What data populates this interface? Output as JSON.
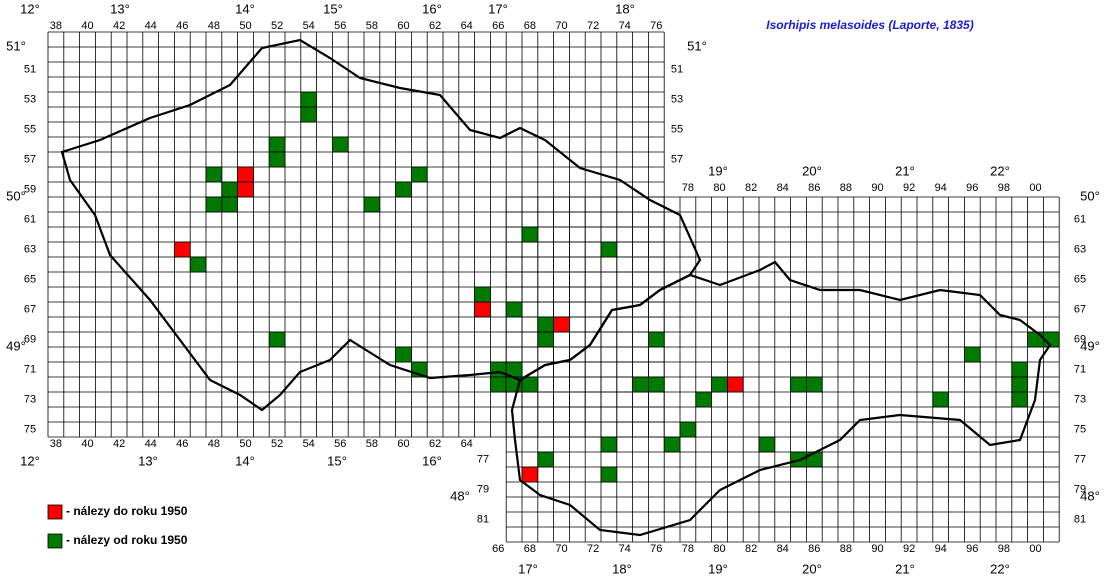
{
  "title": "Isorhipis melasoides (Laporte, 1835)",
  "grid": {
    "top_columns": [
      "38",
      "40",
      "42",
      "44",
      "46",
      "48",
      "50",
      "52",
      "54",
      "56",
      "58",
      "60",
      "62",
      "64",
      "66",
      "68",
      "70",
      "72",
      "74",
      "76"
    ],
    "bottom_columns_cz": [
      "38",
      "40",
      "42",
      "44",
      "46",
      "48",
      "50",
      "52",
      "54",
      "56",
      "58",
      "60",
      "62",
      "64"
    ],
    "top_columns_sk": [
      "78",
      "80",
      "82",
      "84",
      "86",
      "88",
      "90",
      "92",
      "94",
      "96",
      "98",
      "00"
    ],
    "bottom_columns_sk": [
      "66",
      "68",
      "70",
      "72",
      "74",
      "76",
      "78",
      "80",
      "82",
      "84",
      "86",
      "88",
      "90",
      "92",
      "94",
      "96",
      "98",
      "00"
    ],
    "left_rows_cz": [
      "51",
      "53",
      "55",
      "57",
      "59",
      "61",
      "63",
      "65",
      "67",
      "69",
      "71",
      "73",
      "75"
    ],
    "right_rows_cz": [
      "51",
      "53",
      "55",
      "57"
    ],
    "right_rows_sk": [
      "61",
      "63",
      "65",
      "67",
      "69",
      "71",
      "73",
      "75",
      "77",
      "79",
      "81"
    ],
    "left_rows_sk": [
      "77",
      "79",
      "81"
    ]
  },
  "degrees": {
    "top": [
      "12°",
      "13°",
      "14°",
      "15°",
      "16°",
      "17°",
      "18°"
    ],
    "bottom_cz": [
      "12°",
      "13°",
      "14°",
      "15°",
      "16°"
    ],
    "top_sk": [
      "19°",
      "20°",
      "21°",
      "22°"
    ],
    "bottom_sk": [
      "17°",
      "18°",
      "19°",
      "20°",
      "21°",
      "22°"
    ],
    "left": [
      "51°",
      "50°",
      "49°"
    ],
    "right": [
      "51°",
      "50°",
      "49°",
      "48°"
    ],
    "left_sk": [
      "48°"
    ]
  },
  "records": {
    "before_1950": {
      "label": "- nálezy do roku 1950",
      "color": "#ff0000",
      "cells": [
        [
          50,
          58
        ],
        [
          50,
          59
        ],
        [
          46,
          63
        ],
        [
          65,
          67
        ],
        [
          70,
          68
        ],
        [
          81,
          72
        ],
        [
          68,
          78
        ]
      ]
    },
    "since_1950": {
      "label": "- nálezy od roku 1950",
      "color": "#007a00",
      "cells": [
        [
          54,
          53
        ],
        [
          54,
          54
        ],
        [
          52,
          56
        ],
        [
          52,
          57
        ],
        [
          56,
          56
        ],
        [
          61,
          58
        ],
        [
          60,
          59
        ],
        [
          58,
          60
        ],
        [
          48,
          58
        ],
        [
          49,
          59
        ],
        [
          48,
          60
        ],
        [
          49,
          60
        ],
        [
          47,
          64
        ],
        [
          68,
          62
        ],
        [
          73,
          63
        ],
        [
          65,
          66
        ],
        [
          67,
          67
        ],
        [
          69,
          68
        ],
        [
          69,
          69
        ],
        [
          52,
          69
        ],
        [
          60,
          70
        ],
        [
          61,
          71
        ],
        [
          66,
          71
        ],
        [
          67,
          71
        ],
        [
          66,
          72
        ],
        [
          67,
          72
        ],
        [
          68,
          72
        ],
        [
          76,
          69
        ],
        [
          75,
          72
        ],
        [
          76,
          72
        ],
        [
          80,
          72
        ],
        [
          79,
          73
        ],
        [
          78,
          75
        ],
        [
          77,
          76
        ],
        [
          73,
          76
        ],
        [
          73,
          78
        ],
        [
          69,
          77
        ],
        [
          85,
          72
        ],
        [
          86,
          72
        ],
        [
          83,
          76
        ],
        [
          85,
          77
        ],
        [
          86,
          77
        ],
        [
          94,
          73
        ],
        [
          96,
          70
        ],
        [
          99,
          71
        ],
        [
          99,
          72
        ],
        [
          99,
          73
        ],
        [
          0,
          69
        ],
        [
          1,
          69
        ]
      ]
    }
  }
}
